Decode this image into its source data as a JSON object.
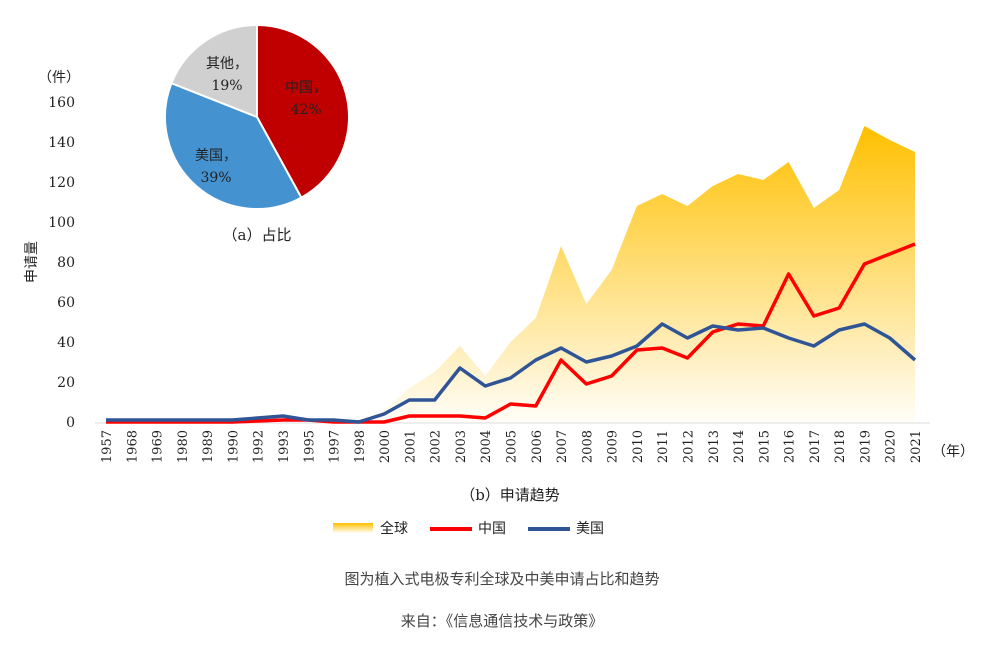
{
  "chart_data": [
    {
      "type": "pie",
      "title": "（a）占比",
      "slices": [
        {
          "name": "中国",
          "label": "中国，",
          "pct_label": "42%",
          "value": 42,
          "color": "#C00000"
        },
        {
          "name": "美国",
          "label": "美国，",
          "pct_label": "39%",
          "value": 39,
          "color": "#4592D0"
        },
        {
          "name": "其他",
          "label": "其他，",
          "pct_label": "19%",
          "value": 19,
          "color": "#D0D0D0"
        }
      ]
    },
    {
      "type": "line+area",
      "title": "（b）申请趋势",
      "ylabel": "申请量",
      "yunit": "（件）",
      "xunit": "（年）",
      "ylim": [
        0,
        160
      ],
      "yticks": [
        0,
        20,
        40,
        60,
        80,
        100,
        120,
        140,
        160
      ],
      "grid": false,
      "legend": "bottom",
      "categories": [
        "1957",
        "1968",
        "1969",
        "1980",
        "1989",
        "1990",
        "1992",
        "1993",
        "1995",
        "1997",
        "1998",
        "2000",
        "2001",
        "2002",
        "2003",
        "2004",
        "2005",
        "2006",
        "2007",
        "2008",
        "2009",
        "2010",
        "2011",
        "2012",
        "2013",
        "2014",
        "2015",
        "2016",
        "2017",
        "2018",
        "2019",
        "2020",
        "2021"
      ],
      "series": [
        {
          "name": "全球",
          "type": "area",
          "color": "#FFC000",
          "values": [
            1,
            1,
            1,
            1,
            1,
            1,
            2,
            3,
            1,
            1,
            0,
            6,
            17,
            25,
            38,
            23,
            40,
            52,
            88,
            59,
            76,
            108,
            114,
            108,
            118,
            124,
            121,
            130,
            107,
            116,
            148,
            141,
            135
          ]
        },
        {
          "name": "中国",
          "type": "line",
          "color": "#FF0000",
          "values": [
            0,
            0,
            0,
            0,
            0,
            0,
            0.5,
            1,
            1,
            0,
            0,
            0,
            3,
            3,
            3,
            2,
            9,
            8,
            31,
            19,
            23,
            36,
            37,
            32,
            45,
            49,
            48,
            74,
            53,
            57,
            79,
            84,
            89
          ]
        },
        {
          "name": "美国",
          "type": "line",
          "color": "#2F5597",
          "values": [
            1,
            1,
            1,
            1,
            1,
            1,
            2,
            3,
            1,
            1,
            0,
            4,
            11,
            11,
            27,
            18,
            22,
            31,
            37,
            30,
            33,
            38,
            49,
            42,
            48,
            46,
            47,
            42,
            38,
            46,
            49,
            42,
            31
          ]
        }
      ]
    }
  ],
  "caption": "图为植入式电极专利全球及中美申请占比和趋势",
  "source": "来自：《信息通信技术与政策》"
}
